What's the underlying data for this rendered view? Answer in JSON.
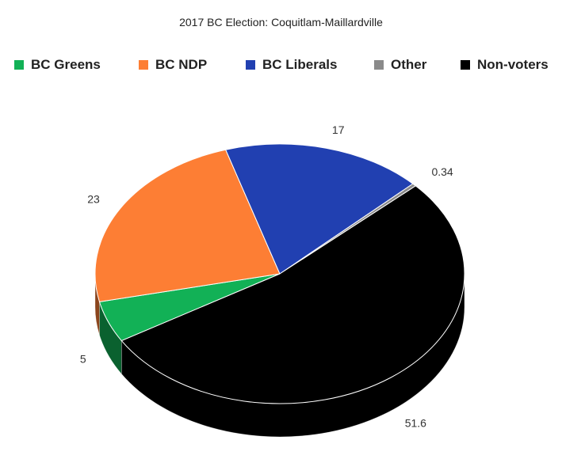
{
  "chart_data": {
    "type": "pie",
    "title": "2017 BC Election: Coquitlam-Maillardville",
    "is_3d": true,
    "legend_position": "top",
    "slices": [
      {
        "name": "BC Greens",
        "value": 5,
        "label": "5",
        "color": "#12b156"
      },
      {
        "name": "BC NDP",
        "value": 23,
        "label": "23",
        "color": "#fd7e34"
      },
      {
        "name": "BC Liberals",
        "value": 17,
        "label": "17",
        "color": "#2140b1"
      },
      {
        "name": "Other",
        "value": 0.34,
        "label": "0.34",
        "color": "#8a8a8a"
      },
      {
        "name": "Non-voters",
        "value": 51.6,
        "label": "51.6",
        "color": "#000000"
      }
    ]
  }
}
